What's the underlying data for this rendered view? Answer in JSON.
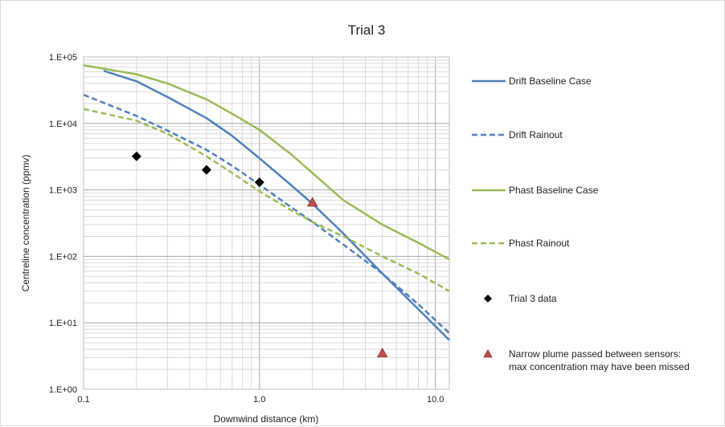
{
  "chart_data": {
    "type": "line",
    "title": "Trial 3",
    "xlabel": "Downwind distance (km)",
    "ylabel": "Centreline concentration (ppmv)",
    "x_scale": "log",
    "y_scale": "log",
    "xlim": [
      0.1,
      12
    ],
    "ylim": [
      1,
      100000
    ],
    "x_ticks": [
      0.1,
      1,
      10
    ],
    "x_tick_labels": [
      "0.1",
      "1.0",
      "10.0"
    ],
    "y_ticks": [
      1,
      10,
      100,
      1000,
      10000,
      100000
    ],
    "y_tick_labels": [
      "1.E+00",
      "1.E+01",
      "1.E+02",
      "1.E+03",
      "1.E+04",
      "1.E+05"
    ],
    "grid": true,
    "legend_position": "right",
    "series": [
      {
        "name": "Drift Baseline Case",
        "kind": "line",
        "style": "solid",
        "color": "#4f81bd",
        "x": [
          0.13,
          0.2,
          0.3,
          0.5,
          0.7,
          1.0,
          1.5,
          2.0,
          3.0,
          5.0,
          8.0,
          12.0
        ],
        "y": [
          62000,
          43000,
          25000,
          12000,
          6500,
          3000,
          1200,
          620,
          220,
          55,
          16,
          5.5
        ]
      },
      {
        "name": "Drift Rainout",
        "kind": "line",
        "style": "dashed",
        "color": "#4f81bd",
        "x": [
          0.1,
          0.2,
          0.3,
          0.5,
          0.7,
          1.0,
          1.5,
          2.0,
          3.0,
          5.0,
          8.0,
          12.0
        ],
        "y": [
          27000,
          13000,
          7800,
          4000,
          2300,
          1200,
          560,
          330,
          150,
          55,
          19,
          7
        ]
      },
      {
        "name": "Phast Baseline Case",
        "kind": "line",
        "style": "solid",
        "color": "#9bbb59",
        "x": [
          0.1,
          0.2,
          0.3,
          0.5,
          0.7,
          1.0,
          1.5,
          2.0,
          3.0,
          5.0,
          8.0,
          12.0
        ],
        "y": [
          75000,
          55000,
          40000,
          23000,
          14000,
          8000,
          3500,
          1800,
          700,
          300,
          160,
          90
        ]
      },
      {
        "name": "Phast Rainout",
        "kind": "line",
        "style": "dashed",
        "color": "#9bbb59",
        "x": [
          0.1,
          0.2,
          0.3,
          0.5,
          0.7,
          1.0,
          1.5,
          2.0,
          3.0,
          5.0,
          8.0,
          12.0
        ],
        "y": [
          16500,
          11000,
          7000,
          3200,
          1800,
          950,
          500,
          330,
          200,
          100,
          55,
          30
        ]
      },
      {
        "name": "Trial 3 data",
        "kind": "marker",
        "marker": "diamond",
        "color": "#000000",
        "x": [
          0.2,
          0.5,
          1.0
        ],
        "y": [
          3200,
          2000,
          1300
        ]
      },
      {
        "name": "Narrow plume passed between sensors: max concentration may have been missed",
        "kind": "marker",
        "marker": "triangle",
        "color": "#c0504d",
        "x": [
          2.0,
          5.0
        ],
        "y": [
          650,
          3.5
        ]
      }
    ],
    "legend": [
      {
        "lines": [
          "Drift Baseline Case"
        ]
      },
      {
        "lines": [
          "Drift Rainout"
        ]
      },
      {
        "lines": [
          "Phast Baseline Case"
        ]
      },
      {
        "lines": [
          "Phast Rainout"
        ]
      },
      {
        "lines": [
          "Trial 3 data"
        ]
      },
      {
        "lines": [
          "Narrow plume passed between sensors:",
          "max concentration may have been missed"
        ]
      }
    ]
  }
}
